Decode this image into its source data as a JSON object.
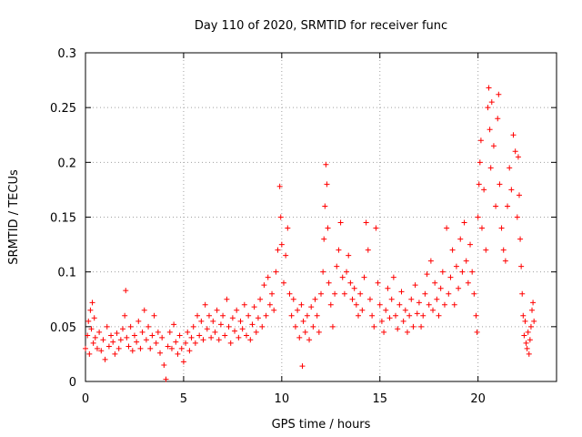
{
  "chart_data": {
    "type": "scatter",
    "title": "Day 110 of 2020, SRMTID for receiver func",
    "xlabel": "GPS time / hours",
    "ylabel": "SRMTID / TECUs",
    "xlim": [
      0,
      24
    ],
    "ylim": [
      0,
      0.3
    ],
    "xticks": [
      0,
      5,
      10,
      15,
      20
    ],
    "xtick_labels": [
      "0",
      "5",
      "10",
      "15",
      "20"
    ],
    "yticks": [
      0,
      0.05,
      0.1,
      0.15,
      0.2,
      0.25,
      0.3
    ],
    "ytick_labels": [
      "0",
      "0.05",
      "0.1",
      "0.15",
      "0.2",
      "0.25",
      "0.3"
    ],
    "grid": true,
    "marker": "plus",
    "color": "#ff0000",
    "series": [
      {
        "name": "SRMTID",
        "points": [
          [
            0.0,
            0.03
          ],
          [
            0.1,
            0.042
          ],
          [
            0.15,
            0.055
          ],
          [
            0.2,
            0.025
          ],
          [
            0.25,
            0.065
          ],
          [
            0.3,
            0.048
          ],
          [
            0.35,
            0.072
          ],
          [
            0.4,
            0.035
          ],
          [
            0.45,
            0.058
          ],
          [
            0.5,
            0.04
          ],
          [
            0.6,
            0.03
          ],
          [
            0.7,
            0.045
          ],
          [
            0.8,
            0.028
          ],
          [
            0.9,
            0.038
          ],
          [
            1.0,
            0.02
          ],
          [
            1.1,
            0.05
          ],
          [
            1.2,
            0.032
          ],
          [
            1.3,
            0.042
          ],
          [
            1.4,
            0.036
          ],
          [
            1.5,
            0.025
          ],
          [
            1.6,
            0.044
          ],
          [
            1.7,
            0.03
          ],
          [
            1.8,
            0.038
          ],
          [
            1.9,
            0.048
          ],
          [
            2.0,
            0.06
          ],
          [
            2.05,
            0.083
          ],
          [
            2.1,
            0.04
          ],
          [
            2.2,
            0.032
          ],
          [
            2.3,
            0.05
          ],
          [
            2.4,
            0.028
          ],
          [
            2.5,
            0.042
          ],
          [
            2.6,
            0.036
          ],
          [
            2.7,
            0.055
          ],
          [
            2.8,
            0.03
          ],
          [
            2.9,
            0.045
          ],
          [
            3.0,
            0.065
          ],
          [
            3.1,
            0.038
          ],
          [
            3.2,
            0.05
          ],
          [
            3.3,
            0.03
          ],
          [
            3.4,
            0.042
          ],
          [
            3.5,
            0.06
          ],
          [
            3.6,
            0.035
          ],
          [
            3.7,
            0.045
          ],
          [
            3.8,
            0.026
          ],
          [
            3.9,
            0.04
          ],
          [
            4.0,
            0.015
          ],
          [
            4.1,
            0.002
          ],
          [
            4.2,
            0.032
          ],
          [
            4.3,
            0.045
          ],
          [
            4.4,
            0.03
          ],
          [
            4.5,
            0.052
          ],
          [
            4.6,
            0.036
          ],
          [
            4.7,
            0.025
          ],
          [
            4.8,
            0.042
          ],
          [
            4.9,
            0.03
          ],
          [
            5.0,
            0.018
          ],
          [
            5.1,
            0.035
          ],
          [
            5.2,
            0.045
          ],
          [
            5.3,
            0.028
          ],
          [
            5.4,
            0.04
          ],
          [
            5.5,
            0.05
          ],
          [
            5.6,
            0.035
          ],
          [
            5.7,
            0.06
          ],
          [
            5.8,
            0.042
          ],
          [
            5.9,
            0.055
          ],
          [
            6.0,
            0.038
          ],
          [
            6.1,
            0.07
          ],
          [
            6.2,
            0.048
          ],
          [
            6.3,
            0.06
          ],
          [
            6.4,
            0.04
          ],
          [
            6.5,
            0.055
          ],
          [
            6.6,
            0.045
          ],
          [
            6.7,
            0.065
          ],
          [
            6.8,
            0.038
          ],
          [
            6.9,
            0.052
          ],
          [
            7.0,
            0.06
          ],
          [
            7.1,
            0.042
          ],
          [
            7.2,
            0.075
          ],
          [
            7.3,
            0.05
          ],
          [
            7.4,
            0.035
          ],
          [
            7.5,
            0.058
          ],
          [
            7.6,
            0.046
          ],
          [
            7.7,
            0.065
          ],
          [
            7.8,
            0.04
          ],
          [
            7.9,
            0.055
          ],
          [
            8.0,
            0.048
          ],
          [
            8.1,
            0.07
          ],
          [
            8.2,
            0.042
          ],
          [
            8.3,
            0.06
          ],
          [
            8.4,
            0.038
          ],
          [
            8.5,
            0.052
          ],
          [
            8.6,
            0.068
          ],
          [
            8.7,
            0.045
          ],
          [
            8.8,
            0.058
          ],
          [
            8.9,
            0.075
          ],
          [
            9.0,
            0.05
          ],
          [
            9.1,
            0.088
          ],
          [
            9.2,
            0.06
          ],
          [
            9.3,
            0.095
          ],
          [
            9.4,
            0.07
          ],
          [
            9.5,
            0.08
          ],
          [
            9.6,
            0.065
          ],
          [
            9.7,
            0.1
          ],
          [
            9.8,
            0.12
          ],
          [
            9.9,
            0.178
          ],
          [
            9.95,
            0.15
          ],
          [
            10.0,
            0.125
          ],
          [
            10.1,
            0.09
          ],
          [
            10.2,
            0.115
          ],
          [
            10.3,
            0.14
          ],
          [
            10.4,
            0.08
          ],
          [
            10.5,
            0.06
          ],
          [
            10.6,
            0.075
          ],
          [
            10.7,
            0.05
          ],
          [
            10.8,
            0.065
          ],
          [
            10.9,
            0.04
          ],
          [
            11.0,
            0.07
          ],
          [
            11.05,
            0.014
          ],
          [
            11.1,
            0.055
          ],
          [
            11.2,
            0.045
          ],
          [
            11.3,
            0.06
          ],
          [
            11.4,
            0.038
          ],
          [
            11.5,
            0.068
          ],
          [
            11.6,
            0.05
          ],
          [
            11.7,
            0.075
          ],
          [
            11.8,
            0.06
          ],
          [
            11.9,
            0.045
          ],
          [
            12.0,
            0.08
          ],
          [
            12.1,
            0.1
          ],
          [
            12.15,
            0.13
          ],
          [
            12.2,
            0.16
          ],
          [
            12.25,
            0.198
          ],
          [
            12.3,
            0.18
          ],
          [
            12.35,
            0.14
          ],
          [
            12.4,
            0.09
          ],
          [
            12.5,
            0.07
          ],
          [
            12.6,
            0.05
          ],
          [
            12.7,
            0.08
          ],
          [
            12.8,
            0.105
          ],
          [
            12.9,
            0.12
          ],
          [
            13.0,
            0.145
          ],
          [
            13.1,
            0.095
          ],
          [
            13.2,
            0.08
          ],
          [
            13.3,
            0.1
          ],
          [
            13.4,
            0.115
          ],
          [
            13.5,
            0.09
          ],
          [
            13.6,
            0.075
          ],
          [
            13.7,
            0.085
          ],
          [
            13.8,
            0.07
          ],
          [
            13.9,
            0.06
          ],
          [
            14.0,
            0.08
          ],
          [
            14.1,
            0.065
          ],
          [
            14.2,
            0.095
          ],
          [
            14.3,
            0.145
          ],
          [
            14.4,
            0.12
          ],
          [
            14.5,
            0.075
          ],
          [
            14.6,
            0.06
          ],
          [
            14.7,
            0.05
          ],
          [
            14.8,
            0.14
          ],
          [
            14.9,
            0.09
          ],
          [
            15.0,
            0.07
          ],
          [
            15.1,
            0.055
          ],
          [
            15.2,
            0.045
          ],
          [
            15.3,
            0.065
          ],
          [
            15.4,
            0.085
          ],
          [
            15.5,
            0.058
          ],
          [
            15.6,
            0.075
          ],
          [
            15.7,
            0.095
          ],
          [
            15.8,
            0.06
          ],
          [
            15.9,
            0.048
          ],
          [
            16.0,
            0.07
          ],
          [
            16.1,
            0.082
          ],
          [
            16.2,
            0.055
          ],
          [
            16.3,
            0.065
          ],
          [
            16.4,
            0.045
          ],
          [
            16.5,
            0.06
          ],
          [
            16.6,
            0.075
          ],
          [
            16.7,
            0.05
          ],
          [
            16.8,
            0.088
          ],
          [
            16.9,
            0.062
          ],
          [
            17.0,
            0.072
          ],
          [
            17.1,
            0.05
          ],
          [
            17.2,
            0.06
          ],
          [
            17.3,
            0.08
          ],
          [
            17.4,
            0.098
          ],
          [
            17.5,
            0.07
          ],
          [
            17.6,
            0.11
          ],
          [
            17.7,
            0.065
          ],
          [
            17.8,
            0.09
          ],
          [
            17.9,
            0.075
          ],
          [
            18.0,
            0.06
          ],
          [
            18.1,
            0.085
          ],
          [
            18.2,
            0.1
          ],
          [
            18.3,
            0.07
          ],
          [
            18.4,
            0.14
          ],
          [
            18.5,
            0.08
          ],
          [
            18.6,
            0.095
          ],
          [
            18.7,
            0.12
          ],
          [
            18.8,
            0.07
          ],
          [
            18.9,
            0.105
          ],
          [
            19.0,
            0.085
          ],
          [
            19.1,
            0.13
          ],
          [
            19.2,
            0.1
          ],
          [
            19.3,
            0.145
          ],
          [
            19.4,
            0.11
          ],
          [
            19.5,
            0.09
          ],
          [
            19.6,
            0.125
          ],
          [
            19.7,
            0.1
          ],
          [
            19.8,
            0.08
          ],
          [
            19.9,
            0.06
          ],
          [
            19.95,
            0.045
          ],
          [
            20.0,
            0.15
          ],
          [
            20.05,
            0.18
          ],
          [
            20.1,
            0.2
          ],
          [
            20.15,
            0.22
          ],
          [
            20.2,
            0.14
          ],
          [
            20.3,
            0.175
          ],
          [
            20.4,
            0.12
          ],
          [
            20.5,
            0.25
          ],
          [
            20.55,
            0.268
          ],
          [
            20.6,
            0.23
          ],
          [
            20.65,
            0.195
          ],
          [
            20.7,
            0.255
          ],
          [
            20.8,
            0.215
          ],
          [
            20.9,
            0.16
          ],
          [
            21.0,
            0.24
          ],
          [
            21.05,
            0.262
          ],
          [
            21.1,
            0.18
          ],
          [
            21.2,
            0.14
          ],
          [
            21.3,
            0.12
          ],
          [
            21.4,
            0.11
          ],
          [
            21.5,
            0.16
          ],
          [
            21.6,
            0.195
          ],
          [
            21.7,
            0.175
          ],
          [
            21.8,
            0.225
          ],
          [
            21.9,
            0.21
          ],
          [
            22.0,
            0.15
          ],
          [
            22.05,
            0.205
          ],
          [
            22.1,
            0.17
          ],
          [
            22.15,
            0.13
          ],
          [
            22.2,
            0.105
          ],
          [
            22.25,
            0.08
          ],
          [
            22.3,
            0.06
          ],
          [
            22.35,
            0.042
          ],
          [
            22.4,
            0.055
          ],
          [
            22.45,
            0.035
          ],
          [
            22.5,
            0.03
          ],
          [
            22.55,
            0.045
          ],
          [
            22.6,
            0.025
          ],
          [
            22.65,
            0.038
          ],
          [
            22.7,
            0.05
          ],
          [
            22.75,
            0.065
          ],
          [
            22.8,
            0.072
          ],
          [
            22.85,
            0.055
          ]
        ]
      }
    ]
  }
}
